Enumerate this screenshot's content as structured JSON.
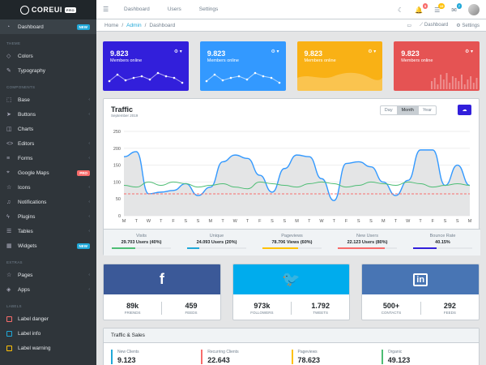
{
  "brand": {
    "name": "COREUI",
    "badge": "PRO"
  },
  "sidebar": {
    "items": [
      {
        "label": "Dashboard",
        "icon": "speedometer-icon",
        "badge": "NEW",
        "active": true
      },
      {
        "section": "THEME"
      },
      {
        "label": "Colors",
        "icon": "drop-icon"
      },
      {
        "label": "Typography",
        "icon": "pencil-icon"
      },
      {
        "section": "COMPONENTS"
      },
      {
        "label": "Base",
        "icon": "puzzle-icon",
        "caret": true
      },
      {
        "label": "Buttons",
        "icon": "cursor-icon",
        "caret": true
      },
      {
        "label": "Charts",
        "icon": "chart-icon"
      },
      {
        "label": "Editors",
        "icon": "code-icon",
        "caret": true
      },
      {
        "label": "Forms",
        "icon": "notes-icon",
        "caret": true
      },
      {
        "label": "Google Maps",
        "icon": "map-icon",
        "badge": "PRO",
        "badgeType": "danger"
      },
      {
        "label": "Icons",
        "icon": "star-icon",
        "caret": true
      },
      {
        "label": "Notifications",
        "icon": "bell-icon",
        "caret": true
      },
      {
        "label": "Plugins",
        "icon": "energy-icon",
        "caret": true
      },
      {
        "label": "Tables",
        "icon": "list-icon",
        "caret": true
      },
      {
        "label": "Widgets",
        "icon": "calculator-icon",
        "badge": "NEW"
      },
      {
        "section": "EXTRAS"
      },
      {
        "label": "Pages",
        "icon": "star-icon",
        "caret": true
      },
      {
        "label": "Apps",
        "icon": "layers-icon",
        "caret": true
      },
      {
        "section": "LABELS"
      },
      {
        "label": "Label danger",
        "dot": "#f86c6b"
      },
      {
        "label": "Label info",
        "dot": "#20a8d8"
      },
      {
        "label": "Label warning",
        "dot": "#ffc107"
      }
    ]
  },
  "topnav": {
    "items": [
      "Dashboard",
      "Users",
      "Settings"
    ]
  },
  "top_icons": [
    {
      "name": "moon-icon",
      "glyph": "☾"
    },
    {
      "name": "bell-icon",
      "glyph": "🔔",
      "badge": "5",
      "color": "#f86c6b"
    },
    {
      "name": "list-icon",
      "glyph": "☰",
      "badge": "15",
      "color": "#ffc107"
    },
    {
      "name": "envelope-icon",
      "glyph": "✉",
      "badge": "7",
      "color": "#20a8d8"
    }
  ],
  "breadcrumb": {
    "home": "Home",
    "admin": "Admin",
    "current": "Dashboard",
    "right": [
      "Dashboard",
      "Settings"
    ]
  },
  "stats": [
    {
      "value": "9.823",
      "label": "Members online",
      "color": "#321fdb"
    },
    {
      "value": "9.823",
      "label": "Members online",
      "color": "#3399ff"
    },
    {
      "value": "9.823",
      "label": "Members online",
      "color": "#f9b115"
    },
    {
      "value": "9.823",
      "label": "Members online",
      "color": "#e55353"
    }
  ],
  "traffic": {
    "title": "Traffic",
    "subtitle": "September 2019",
    "range": [
      "Day",
      "Month",
      "Year"
    ],
    "selected": "Month",
    "footer": [
      {
        "label": "Visits",
        "value": "29.703 Users (40%)",
        "pct": 0.4,
        "color": "#4dbd74"
      },
      {
        "label": "Unique",
        "value": "24.093 Users (20%)",
        "pct": 0.2,
        "color": "#20a8d8"
      },
      {
        "label": "Pageviews",
        "value": "78.706 Views (60%)",
        "pct": 0.6,
        "color": "#ffc107"
      },
      {
        "label": "New Users",
        "value": "22.123 Users (80%)",
        "pct": 0.8,
        "color": "#f86c6b"
      },
      {
        "label": "Bounce Rate",
        "value": "40.15%",
        "pct": 0.4,
        "color": "#321fdb"
      }
    ]
  },
  "chart_data": {
    "type": "line",
    "x": [
      "M",
      "T",
      "W",
      "T",
      "F",
      "S",
      "S",
      "M",
      "T",
      "W",
      "T",
      "F",
      "S",
      "S",
      "M",
      "T",
      "W",
      "T",
      "F",
      "S",
      "S",
      "M",
      "T",
      "W",
      "T",
      "F",
      "S",
      "S",
      "M"
    ],
    "ylim": [
      0,
      250
    ],
    "yticks": [
      "250",
      "200",
      "150",
      "100",
      "50",
      "0"
    ],
    "series": [
      {
        "values": [
          175,
          190,
          65,
          70,
          75,
          95,
          60,
          85,
          160,
          180,
          170,
          120,
          70,
          140,
          180,
          175,
          110,
          45,
          155,
          160,
          145,
          100,
          60,
          105,
          195,
          195,
          90,
          150,
          90
        ]
      },
      {
        "values": [
          90,
          85,
          100,
          90,
          100,
          95,
          85,
          90,
          95,
          85,
          80,
          100,
          95,
          90,
          85,
          95,
          100,
          95,
          85,
          90,
          100,
          95,
          90,
          100,
          95,
          85,
          90,
          95,
          90
        ]
      },
      {
        "values": [
          65,
          65,
          65,
          65,
          65,
          65,
          65,
          65,
          65,
          65,
          65,
          65,
          65,
          65,
          65,
          65,
          65,
          65,
          65,
          65,
          65,
          65,
          65,
          65,
          65,
          65,
          65,
          65,
          65
        ]
      }
    ]
  },
  "social": [
    {
      "brand": "f",
      "color": "#3b5998",
      "stats": [
        {
          "value": "89k",
          "label": "FRIENDS"
        },
        {
          "value": "459",
          "label": "FEEDS"
        }
      ]
    },
    {
      "brand": "t",
      "color": "#00aced",
      "stats": [
        {
          "value": "973k",
          "label": "FOLLOWERS"
        },
        {
          "value": "1.792",
          "label": "TWEETS"
        }
      ]
    },
    {
      "brand": "in",
      "color": "#4875b4",
      "stats": [
        {
          "value": "500+",
          "label": "CONTACTS"
        },
        {
          "value": "292",
          "label": "FEEDS"
        }
      ]
    }
  ],
  "sales": {
    "title": "Traffic & Sales",
    "items": [
      {
        "label": "New Clients",
        "value": "9.123",
        "color": "#20a8d8"
      },
      {
        "label": "Recurring Clients",
        "value": "22.643",
        "color": "#f86c6b"
      },
      {
        "label": "Pageviews",
        "value": "78.623",
        "color": "#ffc107"
      },
      {
        "label": "Organic",
        "value": "49.123",
        "color": "#4dbd74"
      }
    ]
  }
}
